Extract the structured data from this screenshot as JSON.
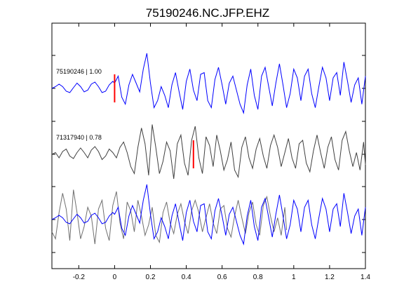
{
  "chart_data": {
    "type": "line",
    "title": "75190246.NC.JFP.EHZ",
    "xlabel": "",
    "ylabel": "",
    "xlim": [
      -0.35,
      1.4
    ],
    "x_ticks": [
      -0.2,
      0,
      0.2,
      0.4,
      0.6,
      0.8,
      1.0,
      1.2,
      1.4
    ],
    "x_tick_labels": [
      "-0.2",
      "0",
      "0.2",
      "0.4",
      "0.6",
      "0.8",
      "1",
      "1.2",
      "1.4"
    ],
    "grid": false,
    "traces": [
      {
        "label": "75190246 | 1.00",
        "color": "#0000ff",
        "pick_time": 0.0,
        "x": [
          -0.35,
          -0.33,
          -0.31,
          -0.29,
          -0.27,
          -0.25,
          -0.23,
          -0.21,
          -0.19,
          -0.17,
          -0.15,
          -0.13,
          -0.11,
          -0.09,
          -0.07,
          -0.05,
          -0.03,
          -0.01,
          0.0,
          0.02,
          0.04,
          0.06,
          0.08,
          0.1,
          0.12,
          0.14,
          0.16,
          0.18,
          0.2,
          0.22,
          0.24,
          0.26,
          0.28,
          0.3,
          0.32,
          0.34,
          0.36,
          0.38,
          0.4,
          0.42,
          0.44,
          0.46,
          0.48,
          0.5,
          0.52,
          0.54,
          0.56,
          0.58,
          0.6,
          0.62,
          0.64,
          0.66,
          0.68,
          0.7,
          0.72,
          0.74,
          0.76,
          0.78,
          0.8,
          0.82,
          0.84,
          0.86,
          0.88,
          0.9,
          0.92,
          0.94,
          0.96,
          0.98,
          1.0,
          1.02,
          1.04,
          1.06,
          1.08,
          1.1,
          1.12,
          1.14,
          1.16,
          1.18,
          1.2,
          1.22,
          1.24,
          1.26,
          1.28,
          1.3,
          1.32,
          1.34,
          1.36,
          1.38,
          1.4
        ],
        "y": [
          0.0,
          0.05,
          0.12,
          0.05,
          -0.08,
          -0.12,
          0.02,
          0.15,
          0.05,
          -0.1,
          -0.05,
          0.12,
          0.18,
          0.05,
          -0.12,
          -0.08,
          0.1,
          0.2,
          0.15,
          0.35,
          -0.25,
          -0.45,
          0.1,
          0.4,
          0.15,
          -0.1,
          0.55,
          1.0,
          0.15,
          -0.55,
          -0.35,
          0.05,
          -0.2,
          -0.55,
          0.1,
          0.45,
          -0.1,
          -0.6,
          0.2,
          0.55,
          -0.05,
          -0.35,
          0.4,
          0.45,
          -0.35,
          -0.55,
          0.25,
          0.6,
          0.1,
          -0.45,
          0.15,
          0.35,
          -0.05,
          -0.45,
          -0.7,
          0.1,
          0.55,
          -0.2,
          -0.6,
          0.35,
          0.6,
          0.05,
          -0.5,
          0.15,
          0.7,
          0.1,
          -0.55,
          -0.15,
          0.55,
          0.3,
          -0.35,
          0.35,
          0.55,
          -0.15,
          -0.55,
          0.05,
          0.6,
          0.3,
          -0.35,
          0.3,
          0.45,
          -0.2,
          0.75,
          0.2,
          -0.4,
          0.1,
          0.3,
          -0.45,
          0.35
        ]
      },
      {
        "label": "71317940 | 0.78",
        "color": "#404040",
        "pick_time": 0.44,
        "x": [
          -0.35,
          -0.33,
          -0.31,
          -0.29,
          -0.27,
          -0.25,
          -0.23,
          -0.21,
          -0.19,
          -0.17,
          -0.15,
          -0.13,
          -0.11,
          -0.09,
          -0.07,
          -0.05,
          -0.03,
          -0.01,
          0.01,
          0.03,
          0.05,
          0.07,
          0.09,
          0.11,
          0.13,
          0.15,
          0.17,
          0.19,
          0.21,
          0.23,
          0.25,
          0.27,
          0.29,
          0.31,
          0.33,
          0.35,
          0.37,
          0.39,
          0.41,
          0.43,
          0.45,
          0.47,
          0.49,
          0.51,
          0.53,
          0.55,
          0.57,
          0.59,
          0.61,
          0.63,
          0.65,
          0.67,
          0.69,
          0.71,
          0.73,
          0.75,
          0.77,
          0.79,
          0.81,
          0.83,
          0.85,
          0.87,
          0.89,
          0.91,
          0.93,
          0.95,
          0.97,
          0.99,
          1.01,
          1.03,
          1.05,
          1.07,
          1.09,
          1.11,
          1.13,
          1.15,
          1.17,
          1.19,
          1.21,
          1.23,
          1.25,
          1.27,
          1.29,
          1.31,
          1.33,
          1.35,
          1.37,
          1.39,
          1.4
        ],
        "y": [
          0.0,
          0.05,
          -0.1,
          0.08,
          0.15,
          -0.05,
          -0.12,
          0.05,
          0.18,
          0.05,
          -0.1,
          0.12,
          0.22,
          0.08,
          -0.15,
          -0.05,
          0.15,
          0.05,
          -0.1,
          0.2,
          0.35,
          0.05,
          -0.35,
          -0.55,
          0.2,
          0.75,
          0.3,
          -0.6,
          0.85,
          0.2,
          -0.55,
          -0.2,
          0.35,
          0.1,
          -0.7,
          0.3,
          0.55,
          -0.25,
          -0.6,
          0.4,
          0.8,
          -0.1,
          -0.55,
          0.5,
          0.25,
          -0.35,
          0.55,
          0.1,
          -0.45,
          -0.15,
          0.35,
          -0.45,
          -0.65,
          0.2,
          0.5,
          -0.1,
          -0.4,
          0.15,
          0.45,
          -0.05,
          -0.4,
          0.25,
          0.55,
          0.2,
          -0.35,
          0.05,
          0.45,
          -0.1,
          -0.4,
          0.3,
          0.4,
          -0.25,
          -0.5,
          0.1,
          0.55,
          0.05,
          -0.4,
          0.2,
          0.5,
          -0.15,
          -0.45,
          0.4,
          0.65,
          0.1,
          -0.35,
          0.05,
          -0.45,
          0.35,
          -0.3
        ]
      }
    ]
  }
}
